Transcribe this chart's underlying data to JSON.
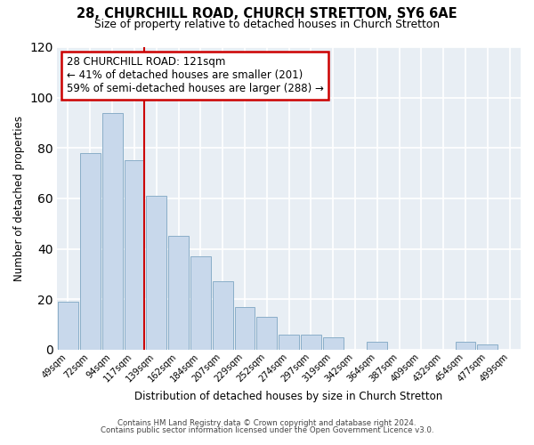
{
  "title": "28, CHURCHILL ROAD, CHURCH STRETTON, SY6 6AE",
  "subtitle": "Size of property relative to detached houses in Church Stretton",
  "xlabel": "Distribution of detached houses by size in Church Stretton",
  "ylabel": "Number of detached properties",
  "bar_color": "#c8d8eb",
  "bar_edge_color": "#8aaec8",
  "categories": [
    "49sqm",
    "72sqm",
    "94sqm",
    "117sqm",
    "139sqm",
    "162sqm",
    "184sqm",
    "207sqm",
    "229sqm",
    "252sqm",
    "274sqm",
    "297sqm",
    "319sqm",
    "342sqm",
    "364sqm",
    "387sqm",
    "409sqm",
    "432sqm",
    "454sqm",
    "477sqm",
    "499sqm"
  ],
  "values": [
    19,
    78,
    94,
    75,
    61,
    45,
    37,
    27,
    17,
    13,
    6,
    6,
    5,
    0,
    3,
    0,
    0,
    0,
    3,
    2,
    0
  ],
  "ylim": [
    0,
    120
  ],
  "yticks": [
    0,
    20,
    40,
    60,
    80,
    100,
    120
  ],
  "vline_color": "#cc0000",
  "vline_index": 3,
  "annotation_title": "28 CHURCHILL ROAD: 121sqm",
  "annotation_line1": "← 41% of detached houses are smaller (201)",
  "annotation_line2": "59% of semi-detached houses are larger (288) →",
  "annotation_box_color": "#ffffff",
  "annotation_box_edge_color": "#cc0000",
  "footer1": "Contains HM Land Registry data © Crown copyright and database right 2024.",
  "footer2": "Contains public sector information licensed under the Open Government Licence v3.0.",
  "background_color": "#ffffff",
  "plot_bg_color": "#e8eef4"
}
